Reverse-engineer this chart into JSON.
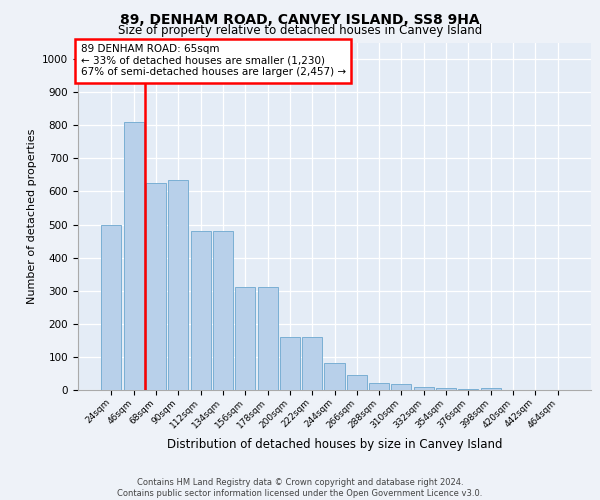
{
  "title": "89, DENHAM ROAD, CANVEY ISLAND, SS8 9HA",
  "subtitle": "Size of property relative to detached houses in Canvey Island",
  "xlabel": "Distribution of detached houses by size in Canvey Island",
  "ylabel": "Number of detached properties",
  "bar_labels": [
    "24sqm",
    "46sqm",
    "68sqm",
    "90sqm",
    "112sqm",
    "134sqm",
    "156sqm",
    "178sqm",
    "200sqm",
    "222sqm",
    "244sqm",
    "266sqm",
    "288sqm",
    "310sqm",
    "332sqm",
    "354sqm",
    "376sqm",
    "398sqm",
    "420sqm",
    "442sqm",
    "464sqm"
  ],
  "bar_values": [
    500,
    810,
    625,
    635,
    480,
    480,
    310,
    310,
    160,
    160,
    82,
    45,
    22,
    18,
    10,
    5,
    2,
    7,
    0,
    0,
    0
  ],
  "bar_color": "#b8d0ea",
  "bar_edgecolor": "#7aafd4",
  "vline_color": "red",
  "annotation_text": "89 DENHAM ROAD: 65sqm\n← 33% of detached houses are smaller (1,230)\n67% of semi-detached houses are larger (2,457) →",
  "annotation_box_color": "white",
  "annotation_box_edgecolor": "red",
  "ylim": [
    0,
    1050
  ],
  "yticks": [
    0,
    100,
    200,
    300,
    400,
    500,
    600,
    700,
    800,
    900,
    1000
  ],
  "footer": "Contains HM Land Registry data © Crown copyright and database right 2024.\nContains public sector information licensed under the Open Government Licence v3.0.",
  "bg_color": "#eef2f8",
  "plot_bg_color": "#e4ecf6"
}
